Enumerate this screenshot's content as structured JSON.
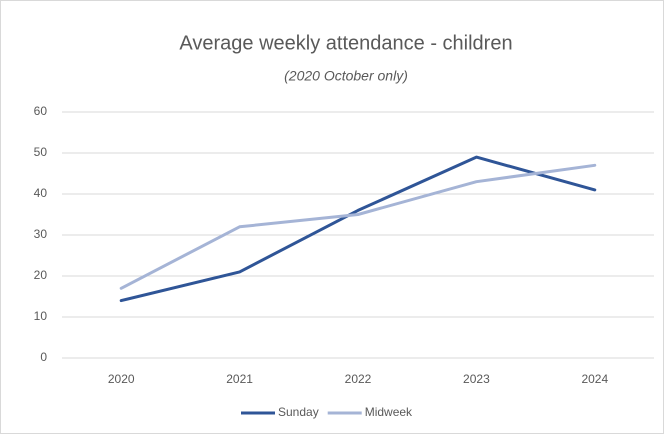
{
  "chart_data": {
    "type": "line",
    "title": "Average weekly attendance - children",
    "subtitle": "(2020 October only)",
    "categories": [
      "2020",
      "2021",
      "2022",
      "2023",
      "2024"
    ],
    "series": [
      {
        "name": "Sunday",
        "color": "#2f5597",
        "values": [
          14,
          21,
          36,
          49,
          41
        ]
      },
      {
        "name": "Midweek",
        "color": "#a5b4d6",
        "values": [
          17,
          32,
          35,
          43,
          47
        ]
      }
    ],
    "ylim": [
      0,
      60
    ],
    "yticks": [
      0,
      10,
      20,
      30,
      40,
      50,
      60
    ],
    "grid": true,
    "legend": "bottom"
  }
}
